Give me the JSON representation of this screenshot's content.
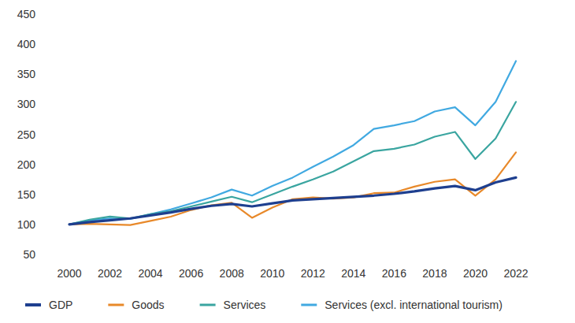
{
  "chart_data": {
    "type": "line",
    "x": [
      2000,
      2001,
      2002,
      2003,
      2004,
      2005,
      2006,
      2007,
      2008,
      2009,
      2010,
      2011,
      2012,
      2013,
      2014,
      2015,
      2016,
      2017,
      2018,
      2019,
      2020,
      2021,
      2022
    ],
    "series": [
      {
        "name": "GDP",
        "color": "#1e3f8f",
        "values": [
          100,
          104,
          107,
          110,
          115,
          120,
          126,
          131,
          134,
          130,
          135,
          140,
          142,
          144,
          146,
          148,
          151,
          155,
          160,
          164,
          157,
          170,
          178
        ]
      },
      {
        "name": "Goods",
        "color": "#e8892a",
        "values": [
          100,
          101,
          100,
          99,
          106,
          113,
          124,
          132,
          136,
          111,
          128,
          142,
          145,
          143,
          145,
          152,
          153,
          163,
          171,
          175,
          148,
          175,
          220
        ]
      },
      {
        "name": "Services",
        "color": "#3aa5a0",
        "values": [
          100,
          108,
          113,
          110,
          117,
          122,
          130,
          138,
          146,
          137,
          150,
          163,
          175,
          188,
          205,
          222,
          226,
          233,
          246,
          254,
          209,
          243,
          304
        ]
      },
      {
        "name": "Services (excl. international tourism)",
        "color": "#41a9e1",
        "values": [
          100,
          107,
          110,
          109,
          117,
          125,
          135,
          145,
          158,
          148,
          164,
          178,
          196,
          213,
          232,
          259,
          265,
          272,
          288,
          295,
          265,
          304,
          372
        ]
      }
    ],
    "xlim": [
      2000,
      2022
    ],
    "xticks": [
      2000,
      2002,
      2004,
      2006,
      2008,
      2010,
      2012,
      2014,
      2016,
      2018,
      2020,
      2022
    ],
    "ylim": [
      50,
      450
    ],
    "yticks": [
      50,
      100,
      150,
      200,
      250,
      300,
      350,
      400,
      450
    ],
    "grid": false,
    "legend": "bottom"
  }
}
